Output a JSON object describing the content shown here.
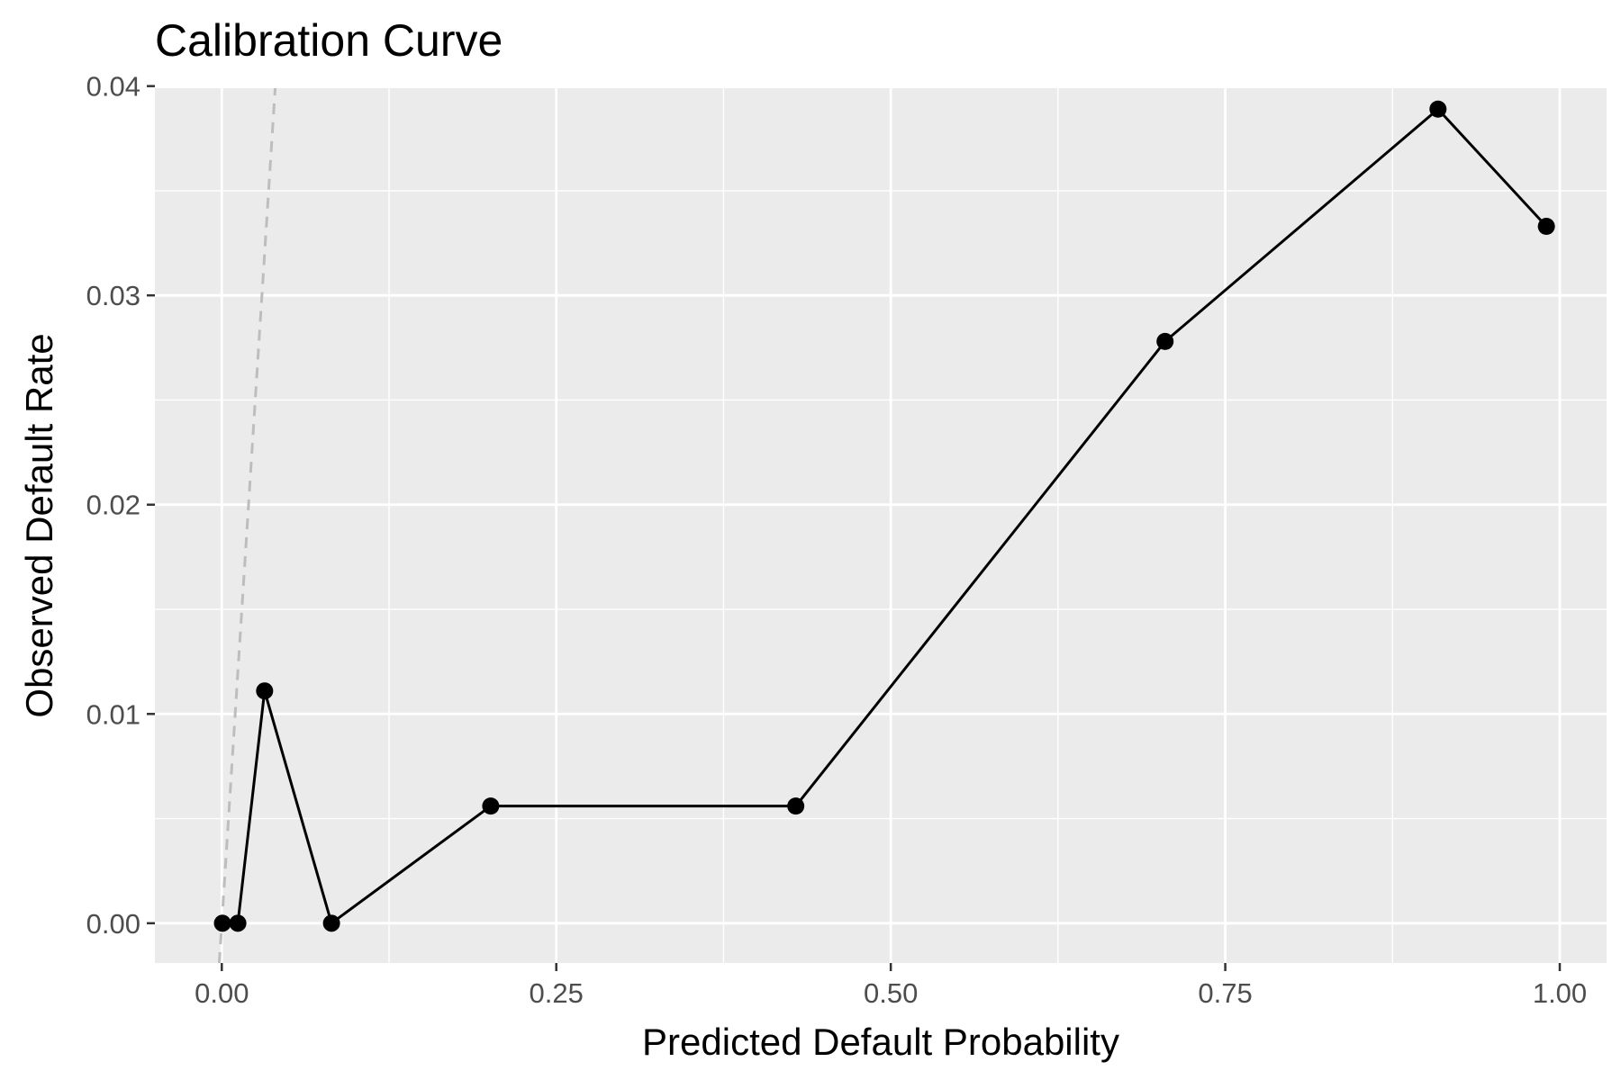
{
  "chart_data": {
    "type": "line",
    "title": "Calibration Curve",
    "xlabel": "Predicted Default Probability",
    "ylabel": "Observed Default Rate",
    "xlim": [
      -0.05,
      1.035
    ],
    "ylim": [
      -0.0019,
      0.0399
    ],
    "x_ticks": [
      0,
      0.25,
      0.5,
      0.75,
      1
    ],
    "x_tick_labels": [
      "0.00",
      "0.25",
      "0.50",
      "0.75",
      "1.00"
    ],
    "y_ticks": [
      0,
      0.01,
      0.02,
      0.03,
      0.04
    ],
    "y_tick_labels": [
      "0.00",
      "0.01",
      "0.02",
      "0.03",
      "0.04"
    ],
    "grid": true,
    "reference_line": {
      "style": "dashed",
      "color": "#bdbdbd",
      "slope": 1,
      "intercept": 0
    },
    "series": [
      {
        "x": [
          0.0005,
          0.012,
          0.032,
          0.082,
          0.201,
          0.429,
          0.705,
          0.909,
          0.99
        ],
        "y": [
          0.0,
          0.0,
          0.0111,
          0.0,
          0.0056,
          0.0056,
          0.0278,
          0.0389,
          0.0333
        ],
        "color": "#000000"
      }
    ],
    "colors": {
      "panel": "#ebebeb",
      "grid": "#ffffff",
      "line": "#000000",
      "tick": "#333333"
    }
  }
}
